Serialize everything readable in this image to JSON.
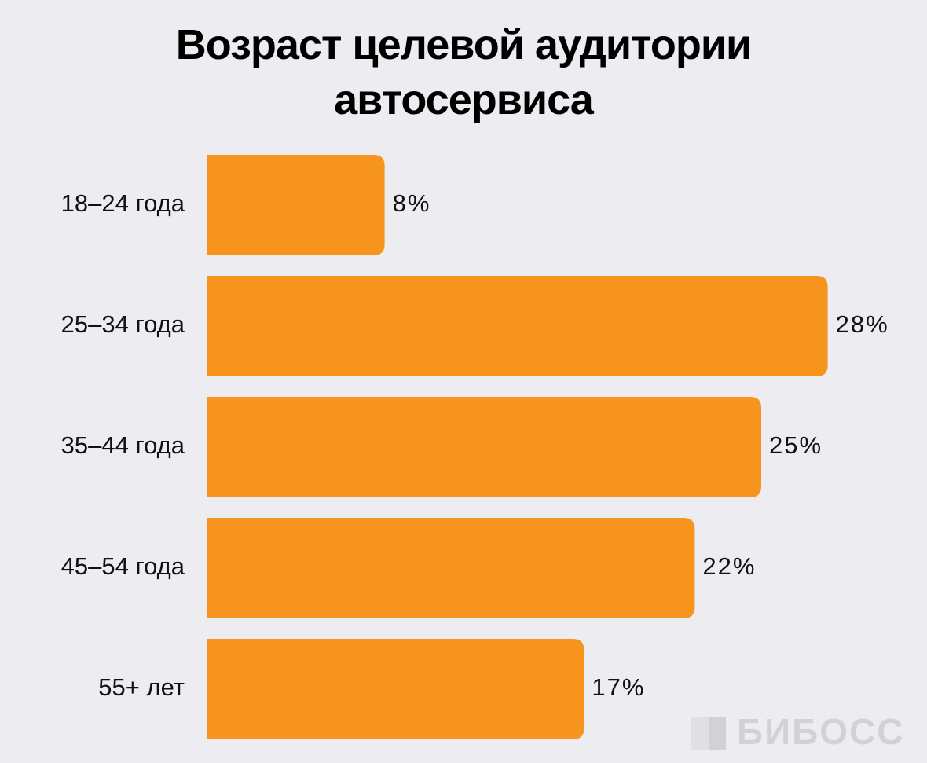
{
  "chart_data": {
    "type": "hbar",
    "title": "Возраст целевой аудитории автосервиса",
    "categories": [
      "18–24 года",
      "25–34 года",
      "35–44 года",
      "45–54 года",
      "55+ лет"
    ],
    "values": [
      8,
      28,
      25,
      22,
      17
    ],
    "value_labels": [
      "8%",
      "28%",
      "25%",
      "22%",
      "17%"
    ],
    "color": "#f7941d",
    "watermark": "БИБОСС"
  }
}
